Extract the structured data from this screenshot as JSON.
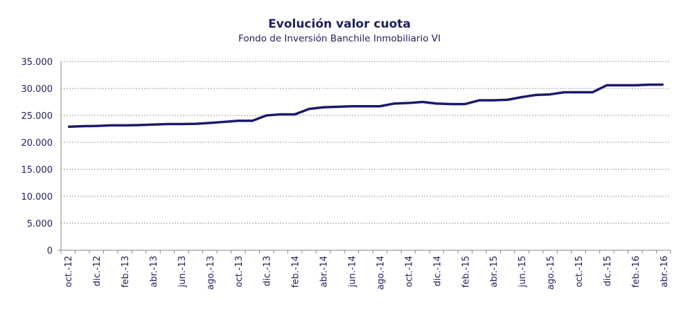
{
  "chart_data": {
    "type": "line",
    "title": "Evolución valor cuota",
    "subtitle": "Fondo de Inversión Banchile Inmobiliario VI",
    "categories": [
      "oct.-12",
      null,
      "dic.-12",
      null,
      "feb.-13",
      null,
      "abr.-13",
      null,
      "jun.-13",
      null,
      "ago.-13",
      null,
      "oct.-13",
      null,
      "dic.-13",
      null,
      "feb.-14",
      null,
      "abr.-14",
      null,
      "jun.-14",
      null,
      "ago.-14",
      null,
      "oct.-14",
      null,
      "dic.-14",
      null,
      "feb.-15",
      null,
      "abr.-15",
      null,
      "jun.-15",
      null,
      "ago.-15",
      null,
      "oct.-15",
      null,
      "dic.-15",
      null,
      "feb.-16",
      null,
      "abr.-16"
    ],
    "series": [
      {
        "name": "Valor cuota",
        "color": "#1a1a6e",
        "values": [
          22900,
          23000,
          23050,
          23150,
          23150,
          23200,
          23300,
          23400,
          23400,
          23450,
          23600,
          23800,
          24000,
          24000,
          25000,
          25200,
          25200,
          26200,
          26500,
          26600,
          26700,
          26700,
          26700,
          27200,
          27300,
          27500,
          27200,
          27100,
          27100,
          27800,
          27800,
          27900,
          28400,
          28800,
          28900,
          29300,
          29300,
          29300,
          30600,
          30600,
          30600,
          30700,
          30700
        ]
      }
    ],
    "ylim": [
      0,
      35000
    ],
    "yticks": [
      0,
      {
        "value": 5000,
        "label": "5.000"
      },
      {
        "value": 10000,
        "label": "10.000"
      },
      {
        "value": 15000,
        "label": "15.000"
      },
      {
        "value": 20000,
        "label": "20.000"
      },
      {
        "value": 25000,
        "label": "25.000"
      },
      {
        "value": 30000,
        "label": "30.000"
      },
      {
        "value": 35000,
        "label": "35.000"
      }
    ],
    "grid": true
  }
}
